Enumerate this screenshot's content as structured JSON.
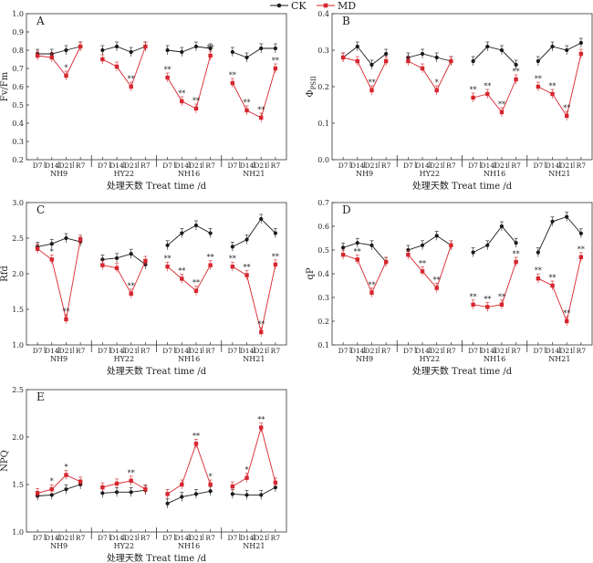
{
  "legend": {
    "items": [
      {
        "label": "CK",
        "color": "#1a1a1a",
        "marker": "circle"
      },
      {
        "label": "MD",
        "color": "#d7262e",
        "marker": "square"
      }
    ]
  },
  "shared": {
    "x_ticks": [
      "D7",
      "D14",
      "D21",
      "R7"
    ],
    "groups": [
      "NH9",
      "HY22",
      "NH16",
      "NH21"
    ],
    "xlabel": "处理天数 Treat time /d"
  },
  "chart_data": [
    {
      "type": "line",
      "panel": "A",
      "ylabel": "Fv/Fm",
      "ylim": [
        0.2,
        1.0
      ],
      "yticks": [
        "0.2",
        "0.3",
        "0.4",
        "0.5",
        "0.6",
        "0.7",
        "0.8",
        "0.9",
        "1.0"
      ],
      "groups": [
        "NH9",
        "HY22",
        "NH16",
        "NH21"
      ],
      "categories": [
        "D7",
        "D14",
        "D21",
        "R7"
      ],
      "series": [
        {
          "name": "CK",
          "values": [
            [
              0.78,
              0.78,
              0.8,
              0.82
            ],
            [
              0.8,
              0.82,
              0.79,
              0.82
            ],
            [
              0.8,
              0.79,
              0.82,
              0.81
            ],
            [
              0.79,
              0.76,
              0.81,
              0.81
            ]
          ]
        },
        {
          "name": "MD",
          "values": [
            [
              0.77,
              0.76,
              0.66,
              0.82
            ],
            [
              0.75,
              0.71,
              0.6,
              0.82
            ],
            [
              0.65,
              0.52,
              0.48,
              0.77
            ],
            [
              0.62,
              0.47,
              0.43,
              0.7
            ]
          ]
        }
      ],
      "annotations": [
        [
          "",
          "",
          "*",
          ""
        ],
        [
          "",
          "",
          "**",
          ""
        ],
        [
          "**",
          "**",
          "**",
          "**"
        ],
        [
          "**",
          "**",
          "**",
          "**"
        ]
      ]
    },
    {
      "type": "line",
      "panel": "B",
      "ylabel": "Φ_PSII",
      "ylim": [
        0.0,
        0.4
      ],
      "yticks": [
        "0.0",
        "0.1",
        "0.2",
        "0.3",
        "0.4"
      ],
      "groups": [
        "NH9",
        "HY22",
        "NH16",
        "NH21"
      ],
      "categories": [
        "D7",
        "D14",
        "D21",
        "R7"
      ],
      "series": [
        {
          "name": "CK",
          "values": [
            [
              0.28,
              0.31,
              0.26,
              0.29
            ],
            [
              0.28,
              0.29,
              0.28,
              0.27
            ],
            [
              0.27,
              0.31,
              0.3,
              0.26
            ],
            [
              0.27,
              0.31,
              0.3,
              0.32
            ]
          ]
        },
        {
          "name": "MD",
          "values": [
            [
              0.28,
              0.27,
              0.19,
              0.27
            ],
            [
              0.27,
              0.25,
              0.19,
              0.27
            ],
            [
              0.17,
              0.18,
              0.13,
              0.22
            ],
            [
              0.2,
              0.18,
              0.12,
              0.29
            ]
          ]
        }
      ],
      "annotations": [
        [
          "",
          "",
          "**",
          ""
        ],
        [
          "",
          "",
          "*",
          ""
        ],
        [
          "**",
          "**",
          "**",
          "**"
        ],
        [
          "**",
          "**",
          "**",
          ""
        ]
      ]
    },
    {
      "type": "line",
      "panel": "C",
      "ylabel": "Rfd",
      "ylim": [
        1.0,
        3.0
      ],
      "yticks": [
        "1.0",
        "1.5",
        "2.0",
        "2.5",
        "3.0"
      ],
      "groups": [
        "NH9",
        "HY22",
        "NH16",
        "NH21"
      ],
      "categories": [
        "D7",
        "D14",
        "D21",
        "R7"
      ],
      "series": [
        {
          "name": "CK",
          "values": [
            [
              2.38,
              2.42,
              2.5,
              2.45
            ],
            [
              2.2,
              2.22,
              2.28,
              2.13
            ],
            [
              2.4,
              2.57,
              2.68,
              2.57
            ],
            [
              2.38,
              2.48,
              2.77,
              2.57
            ]
          ]
        },
        {
          "name": "MD",
          "values": [
            [
              2.35,
              2.2,
              1.36,
              2.48
            ],
            [
              2.12,
              2.08,
              1.72,
              2.18
            ],
            [
              2.1,
              1.93,
              1.76,
              2.12
            ],
            [
              2.1,
              1.98,
              1.18,
              2.13
            ]
          ]
        }
      ],
      "annotations": [
        [
          "",
          "*",
          "**",
          ""
        ],
        [
          "",
          "",
          "**",
          ""
        ],
        [
          "**",
          "**",
          "**",
          "**"
        ],
        [
          "**",
          "**",
          "**",
          "**"
        ]
      ]
    },
    {
      "type": "line",
      "panel": "D",
      "ylabel": "qP",
      "ylim": [
        0.1,
        0.7
      ],
      "yticks": [
        "0.1",
        "0.2",
        "0.3",
        "0.4",
        "0.5",
        "0.6",
        "0.7"
      ],
      "groups": [
        "NH9",
        "HY22",
        "NH16",
        "NH21"
      ],
      "categories": [
        "D7",
        "D14",
        "D21",
        "R7"
      ],
      "series": [
        {
          "name": "CK",
          "values": [
            [
              0.51,
              0.53,
              0.52,
              0.45
            ],
            [
              0.5,
              0.52,
              0.56,
              0.52
            ],
            [
              0.49,
              0.52,
              0.6,
              0.53
            ],
            [
              0.49,
              0.62,
              0.64,
              0.57
            ]
          ]
        },
        {
          "name": "MD",
          "values": [
            [
              0.48,
              0.46,
              0.32,
              0.45
            ],
            [
              0.48,
              0.41,
              0.34,
              0.52
            ],
            [
              0.27,
              0.26,
              0.27,
              0.45
            ],
            [
              0.38,
              0.35,
              0.2,
              0.47
            ]
          ]
        }
      ],
      "annotations": [
        [
          "",
          "**",
          "**",
          ""
        ],
        [
          "",
          "**",
          "**",
          ""
        ],
        [
          "**",
          "**",
          "**",
          "**"
        ],
        [
          "**",
          "**",
          "**",
          "**"
        ]
      ]
    },
    {
      "type": "line",
      "panel": "E",
      "ylabel": "NPQ",
      "ylim": [
        1.0,
        2.5
      ],
      "yticks": [
        "1.0",
        "1.5",
        "2.0",
        "2.5"
      ],
      "groups": [
        "NH9",
        "HY22",
        "NH16",
        "NH21"
      ],
      "categories": [
        "D7",
        "D14",
        "D21",
        "R7"
      ],
      "series": [
        {
          "name": "CK",
          "values": [
            [
              1.38,
              1.39,
              1.45,
              1.5
            ],
            [
              1.41,
              1.42,
              1.42,
              1.44
            ],
            [
              1.3,
              1.37,
              1.4,
              1.43
            ],
            [
              1.4,
              1.39,
              1.39,
              1.47
            ]
          ]
        },
        {
          "name": "MD",
          "values": [
            [
              1.41,
              1.45,
              1.6,
              1.53
            ],
            [
              1.47,
              1.51,
              1.54,
              1.45
            ],
            [
              1.4,
              1.5,
              1.93,
              1.5
            ],
            [
              1.48,
              1.57,
              2.1,
              1.52
            ]
          ]
        }
      ],
      "annotations": [
        [
          "",
          "*",
          "*",
          ""
        ],
        [
          "",
          "",
          "**",
          ""
        ],
        [
          "",
          "",
          "**",
          "*"
        ],
        [
          "",
          "*",
          "**",
          ""
        ]
      ]
    }
  ]
}
